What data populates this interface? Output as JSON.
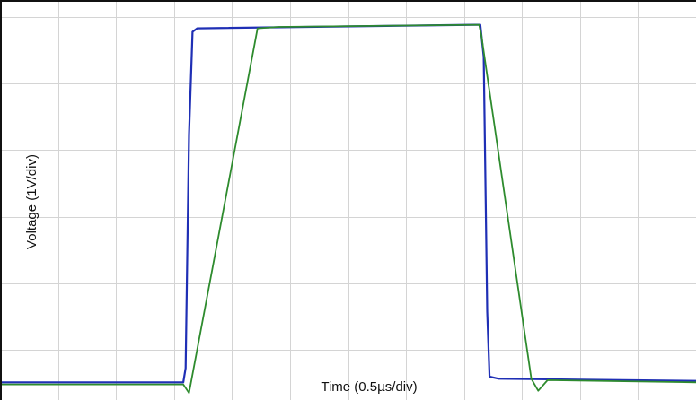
{
  "chart_data": {
    "type": "line",
    "xlabel": "Time (0.5µs/div)",
    "ylabel": "Voltage (1V/div)",
    "xlim": [
      0,
      6.0
    ],
    "ylim": [
      -0.25,
      5.4
    ],
    "x_divisions": 12,
    "y_divisions": 6,
    "grid": true,
    "colors": {
      "grid": "#d4d4d4",
      "frame": "#111111",
      "series_a": "#1f2fb5",
      "series_b": "#2e8b2e"
    },
    "series": [
      {
        "values": [
          [
            0.0,
            0.0
          ],
          [
            1.58,
            0.0
          ],
          [
            1.6,
            0.2
          ],
          [
            1.63,
            3.5
          ],
          [
            1.66,
            4.95
          ],
          [
            1.7,
            5.0
          ],
          [
            4.1,
            5.05
          ],
          [
            4.14,
            5.05
          ],
          [
            4.17,
            4.6
          ],
          [
            4.2,
            1.0
          ],
          [
            4.22,
            0.08
          ],
          [
            4.3,
            0.05
          ],
          [
            6.0,
            0.02
          ]
        ]
      },
      {
        "values": [
          [
            0.0,
            -0.03
          ],
          [
            1.58,
            -0.03
          ],
          [
            1.63,
            -0.15
          ],
          [
            2.22,
            5.0
          ],
          [
            2.4,
            5.02
          ],
          [
            4.13,
            5.05
          ],
          [
            4.15,
            4.9
          ],
          [
            4.58,
            0.05
          ],
          [
            4.64,
            -0.12
          ],
          [
            4.72,
            0.03
          ],
          [
            6.0,
            0.0
          ]
        ]
      }
    ]
  }
}
